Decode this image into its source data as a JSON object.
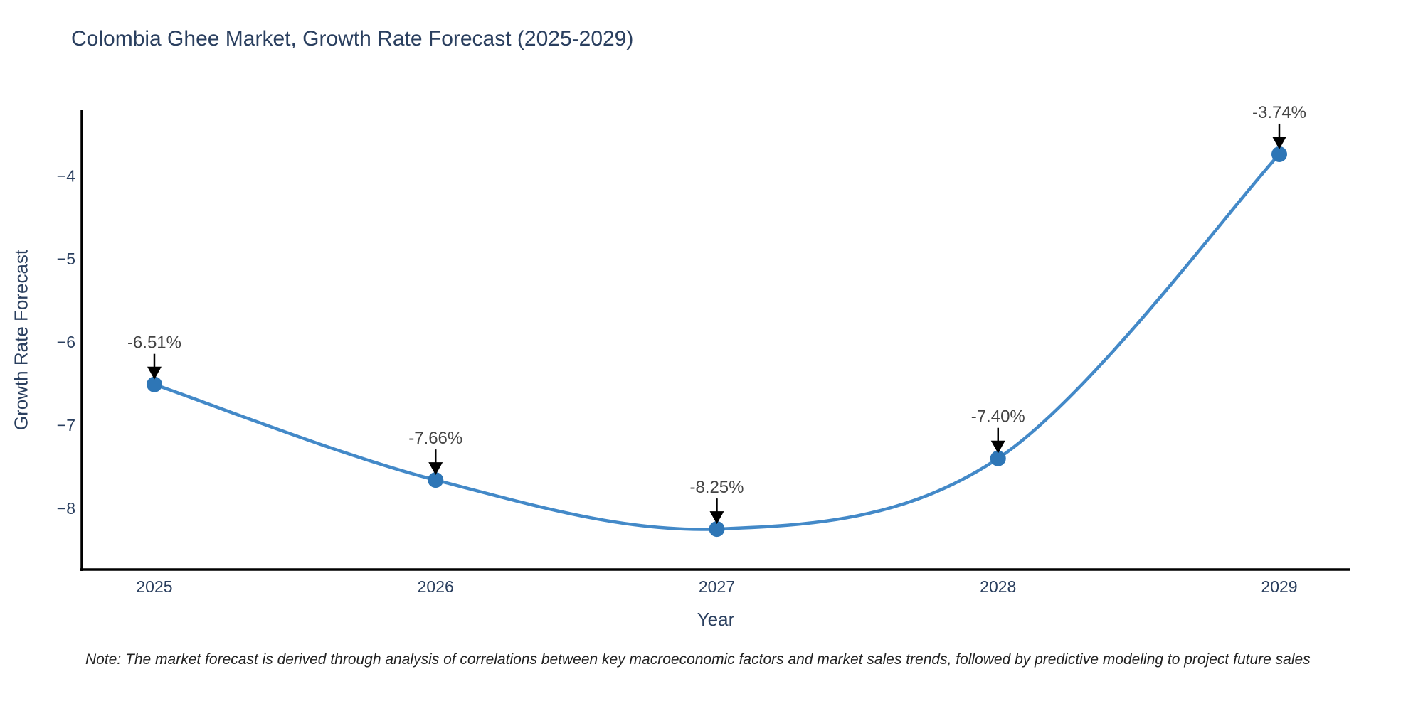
{
  "note": "Note: The market forecast is derived through analysis of correlations between key macroeconomic factors and market sales trends, followed by predictive modeling to project future sales",
  "chart_data": {
    "type": "line",
    "title": "Colombia Ghee Market, Growth Rate Forecast (2025-2029)",
    "xlabel": "Year",
    "ylabel": "Growth Rate Forecast",
    "line_shape": "spline",
    "grid": false,
    "legend": false,
    "x": [
      2025,
      2026,
      2027,
      2028,
      2029
    ],
    "y": [
      -6.51,
      -7.66,
      -8.25,
      -7.4,
      -3.74
    ],
    "point_labels": [
      "-6.51%",
      "-7.66%",
      "-8.25%",
      "-7.40%",
      "-3.74%"
    ],
    "xtick_labels": [
      "2025",
      "2026",
      "2027",
      "2028",
      "2029"
    ],
    "ytick_values": [
      -4,
      -5,
      -6,
      -7,
      -8
    ],
    "ytick_labels": [
      "−4",
      "−5",
      "−6",
      "−7",
      "−8"
    ],
    "xlim": [
      2024.742,
      2029.253
    ],
    "ylim": [
      -8.737,
      -3.21
    ],
    "colors": {
      "line": "#4389c8",
      "marker": "#2e76b6",
      "axis": "#000000",
      "arrow": "#000000",
      "text": "#2a3f5f",
      "annotation": "#444444",
      "note": "#222222",
      "background": "#ffffff"
    }
  }
}
